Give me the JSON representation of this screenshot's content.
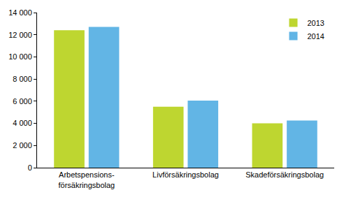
{
  "chart_data": {
    "type": "bar",
    "categories": [
      "Arbetspensions-\nförsäkringsbolag",
      "Livförsäkringsbolag",
      "Skadeförsäkringsbolag"
    ],
    "series": [
      {
        "name": "2013",
        "color": "#bed630",
        "values": [
          12400,
          5500,
          4000
        ]
      },
      {
        "name": "2014",
        "color": "#62b5e5",
        "values": [
          12700,
          6050,
          4250
        ]
      }
    ],
    "ylim": [
      0,
      14000
    ],
    "yticks": [
      0,
      {
        "value": 2000,
        "label": "2 000"
      },
      {
        "value": 4000,
        "label": "4 000"
      },
      {
        "value": 6000,
        "label": "6 000"
      },
      {
        "value": 8000,
        "label": "8 000"
      },
      {
        "value": 10000,
        "label": "10 000"
      },
      {
        "value": 12000,
        "label": "12 000"
      },
      {
        "value": 14000,
        "label": "14 000"
      }
    ],
    "grid": false,
    "legend": "top right"
  }
}
